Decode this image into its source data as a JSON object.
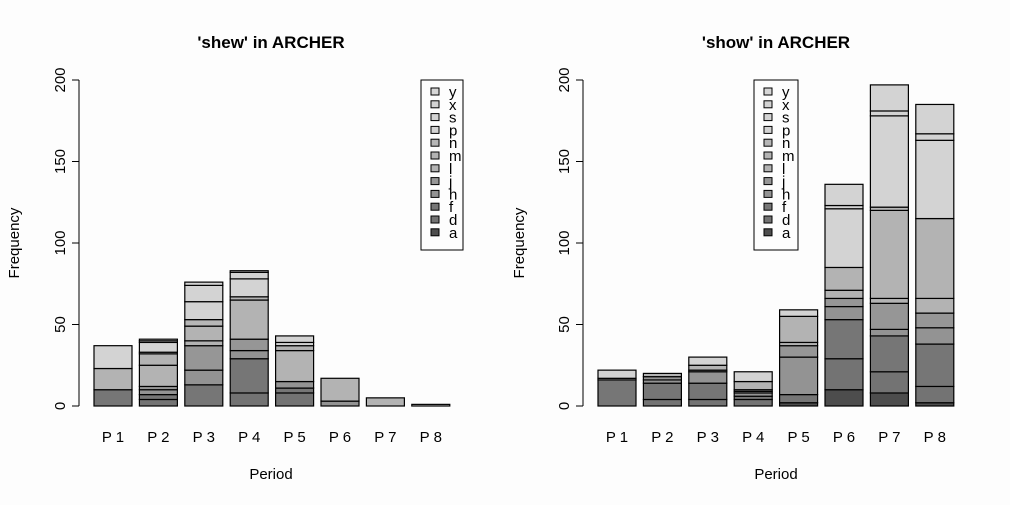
{
  "chart_data": [
    {
      "type": "bar",
      "stacked": true,
      "title": "'shew' in ARCHER",
      "xlabel": "Period",
      "ylabel": "Frequency",
      "ylim": [
        0,
        200
      ],
      "yticks": [
        "0",
        "50",
        "100",
        "150",
        "200"
      ],
      "categories": [
        "P 1",
        "P 2",
        "P 3",
        "P 4",
        "P 5",
        "P 6",
        "P 7",
        "P 8"
      ],
      "legend_placement": "top-right",
      "legend": [
        "y",
        "x",
        "s",
        "p",
        "n",
        "m",
        "l",
        "j",
        "h",
        "f",
        "d",
        "a"
      ],
      "bars": [
        [
          [
            "f",
            10
          ],
          [
            "l",
            13
          ],
          [
            "p",
            14
          ]
        ],
        [
          [
            "d",
            4
          ],
          [
            "f",
            3
          ],
          [
            "h",
            3
          ],
          [
            "j",
            2
          ],
          [
            "l",
            13
          ],
          [
            "m",
            7
          ],
          [
            "n",
            1
          ],
          [
            "p",
            6
          ],
          [
            "s",
            1
          ],
          [
            "x",
            1
          ]
        ],
        [
          [
            "f",
            13
          ],
          [
            "h",
            9
          ],
          [
            "j",
            15
          ],
          [
            "l",
            3
          ],
          [
            "m",
            9
          ],
          [
            "n",
            4
          ],
          [
            "p",
            11
          ],
          [
            "s",
            10
          ],
          [
            "x",
            2
          ]
        ],
        [
          [
            "d",
            8
          ],
          [
            "f",
            21
          ],
          [
            "h",
            5
          ],
          [
            "j",
            7
          ],
          [
            "l",
            24
          ],
          [
            "m",
            2
          ],
          [
            "p",
            11
          ],
          [
            "s",
            4
          ],
          [
            "x",
            1
          ]
        ],
        [
          [
            "d",
            8
          ],
          [
            "f",
            3
          ],
          [
            "h",
            4
          ],
          [
            "l",
            19
          ],
          [
            "m",
            3
          ],
          [
            "p",
            2
          ],
          [
            "s",
            4
          ]
        ],
        [
          [
            "h",
            3
          ],
          [
            "l",
            14
          ]
        ],
        [
          [
            "l",
            5
          ]
        ],
        [
          [
            "p",
            1
          ]
        ]
      ]
    },
    {
      "type": "bar",
      "stacked": true,
      "title": "'show' in ARCHER",
      "xlabel": "Period",
      "ylabel": "Frequency",
      "ylim": [
        0,
        200
      ],
      "yticks": [
        "0",
        "50",
        "100",
        "150",
        "200"
      ],
      "categories": [
        "P 1",
        "P 2",
        "P 3",
        "P 4",
        "P 5",
        "P 6",
        "P 7",
        "P 8"
      ],
      "legend_placement": "top-center",
      "legend": [
        "y",
        "x",
        "s",
        "p",
        "n",
        "m",
        "l",
        "j",
        "h",
        "f",
        "d",
        "a"
      ],
      "bars": [
        [
          [
            "f",
            16
          ],
          [
            "l",
            1
          ],
          [
            "p",
            5
          ]
        ],
        [
          [
            "d",
            4
          ],
          [
            "f",
            10
          ],
          [
            "h",
            2
          ],
          [
            "j",
            2
          ],
          [
            "l",
            2
          ]
        ],
        [
          [
            "d",
            4
          ],
          [
            "f",
            10
          ],
          [
            "h",
            7
          ],
          [
            "j",
            1
          ],
          [
            "l",
            3
          ],
          [
            "p",
            5
          ]
        ],
        [
          [
            "d",
            4
          ],
          [
            "f",
            2
          ],
          [
            "h",
            2
          ],
          [
            "j",
            1
          ],
          [
            "l",
            1
          ],
          [
            "m",
            5
          ],
          [
            "p",
            6
          ]
        ],
        [
          [
            "a",
            2
          ],
          [
            "f",
            5
          ],
          [
            "h",
            23
          ],
          [
            "j",
            7
          ],
          [
            "l",
            2
          ],
          [
            "m",
            16
          ],
          [
            "p",
            4
          ]
        ],
        [
          [
            "a",
            10
          ],
          [
            "d",
            19
          ],
          [
            "f",
            24
          ],
          [
            "h",
            8
          ],
          [
            "j",
            5
          ],
          [
            "l",
            5
          ],
          [
            "m",
            14
          ],
          [
            "p",
            36
          ],
          [
            "s",
            2
          ],
          [
            "x",
            13
          ]
        ],
        [
          [
            "a",
            8
          ],
          [
            "d",
            13
          ],
          [
            "f",
            22
          ],
          [
            "h",
            4
          ],
          [
            "j",
            16
          ],
          [
            "l",
            3
          ],
          [
            "m",
            54
          ],
          [
            "n",
            2
          ],
          [
            "p",
            56
          ],
          [
            "s",
            3
          ],
          [
            "x",
            16
          ]
        ],
        [
          [
            "a",
            2
          ],
          [
            "d",
            10
          ],
          [
            "f",
            26
          ],
          [
            "h",
            10
          ],
          [
            "j",
            9
          ],
          [
            "l",
            9
          ],
          [
            "m",
            49
          ],
          [
            "p",
            48
          ],
          [
            "s",
            4
          ],
          [
            "x",
            18
          ]
        ]
      ]
    }
  ],
  "colors": {
    "a": "#4d4d4d",
    "d": "#737373",
    "f": "#767676",
    "h": "#939393",
    "j": "#969696",
    "l": "#b3b3b3",
    "m": "#b3b3b3",
    "n": "#b6b6b6",
    "p": "#d3d3d3",
    "s": "#d3d3d3",
    "x": "#d3d3d3",
    "y": "#d6d6d6"
  }
}
